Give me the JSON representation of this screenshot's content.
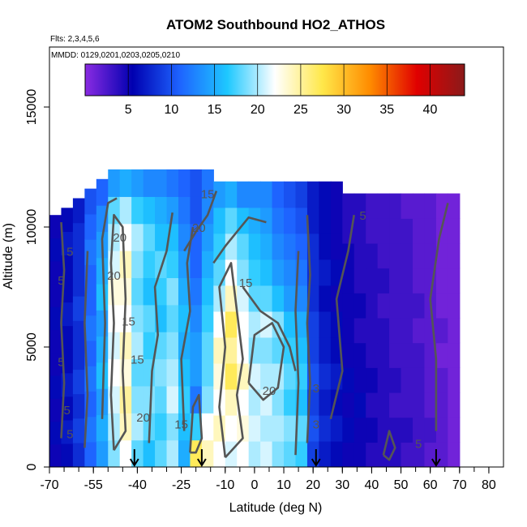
{
  "chart_data": {
    "type": "heatmap",
    "title": "ATOM2 Southbound HO2_ATHOS",
    "flights_label": "Flts: 2,3,4,5,6",
    "dates_label": "MMDD: 0129,0201,0203,0205,0210",
    "xlabel": "Latitude (deg N)",
    "ylabel": "Altitude (m)",
    "xlim": [
      -70,
      85
    ],
    "ylim": [
      0,
      17500
    ],
    "x_tick_values": [
      -70,
      -55,
      -40,
      -25,
      -10,
      0,
      10,
      20,
      30,
      40,
      50,
      60,
      70,
      80
    ],
    "x_tick_labels": [
      "-70",
      "-55",
      "-40",
      "-25",
      "-10",
      "0",
      "10",
      "20",
      "30",
      "40",
      "50",
      "60",
      "70",
      "80"
    ],
    "y_tick_values": [
      0,
      5000,
      10000,
      15000
    ],
    "y_tick_labels": [
      "0",
      "5000",
      "10000",
      "15000"
    ],
    "colorbar": {
      "range": [
        0,
        44
      ],
      "tick_values": [
        5,
        10,
        15,
        20,
        25,
        30,
        35,
        40
      ],
      "tick_labels": [
        "5",
        "10",
        "15",
        "20",
        "25",
        "30",
        "35",
        "40"
      ],
      "colors": [
        "#8a2be2",
        "#0000b0",
        "#1e64ff",
        "#1ec8ff",
        "#ffffff",
        "#ffe84a",
        "#ff8c00",
        "#e00000",
        "#8b1a1a"
      ]
    },
    "profiles": [
      {
        "lat": -68,
        "top": 10500,
        "values": [
          5,
          6,
          5,
          6,
          5,
          5,
          6,
          5,
          5,
          6,
          5
        ]
      },
      {
        "lat": -64,
        "top": 10800,
        "values": [
          6,
          7,
          6,
          7,
          6,
          6,
          7,
          6,
          6,
          7,
          6
        ]
      },
      {
        "lat": -60,
        "top": 11200,
        "values": [
          8,
          9,
          8,
          9,
          8,
          8,
          9,
          8,
          8,
          8,
          7
        ]
      },
      {
        "lat": -56,
        "top": 11600,
        "values": [
          11,
          12,
          11,
          12,
          11,
          12,
          11,
          11,
          12,
          11,
          10
        ]
      },
      {
        "lat": -52,
        "top": 12000,
        "values": [
          14,
          15,
          14,
          16,
          15,
          14,
          16,
          15,
          14,
          13,
          11
        ]
      },
      {
        "lat": -48,
        "top": 12400,
        "values": [
          19,
          20,
          21,
          22,
          21,
          22,
          23,
          21,
          20,
          18,
          14
        ]
      },
      {
        "lat": -44,
        "top": 12400,
        "values": [
          22,
          24,
          25,
          23,
          24,
          22,
          23,
          24,
          22,
          20,
          15
        ]
      },
      {
        "lat": -40,
        "top": 12400,
        "values": [
          18,
          20,
          19,
          18,
          20,
          19,
          18,
          19,
          20,
          17,
          14
        ]
      },
      {
        "lat": -36,
        "top": 12400,
        "values": [
          16,
          18,
          19,
          18,
          17,
          18,
          16,
          17,
          18,
          16,
          13
        ]
      },
      {
        "lat": -32,
        "top": 12400,
        "values": [
          18,
          17,
          18,
          19,
          18,
          16,
          17,
          18,
          16,
          15,
          13
        ]
      },
      {
        "lat": -28,
        "top": 12400,
        "values": [
          20,
          19,
          21,
          20,
          19,
          18,
          19,
          17,
          16,
          14,
          12
        ]
      },
      {
        "lat": -24,
        "top": 12400,
        "values": [
          15,
          16,
          17,
          16,
          15,
          16,
          15,
          14,
          13,
          12,
          11
        ]
      },
      {
        "lat": -20,
        "top": 12400,
        "values": [
          27,
          17,
          12,
          14,
          14,
          13,
          12,
          11,
          11,
          10,
          10
        ]
      },
      {
        "lat": -16,
        "top": 12400,
        "values": [
          24,
          22,
          19,
          18,
          18,
          17,
          16,
          15,
          14,
          13,
          12
        ]
      },
      {
        "lat": -12,
        "top": 11900,
        "values": [
          22,
          24,
          22,
          23,
          24,
          22,
          20,
          18,
          17,
          16,
          14
        ]
      },
      {
        "lat": -8,
        "top": 11900,
        "values": [
          21,
          22,
          24,
          27,
          25,
          27,
          24,
          22,
          20,
          18,
          15
        ]
      },
      {
        "lat": -4,
        "top": 11900,
        "values": [
          22,
          23,
          22,
          24,
          22,
          22,
          21,
          19,
          18,
          16,
          13
        ]
      },
      {
        "lat": 0,
        "top": 11900,
        "values": [
          20,
          21,
          20,
          21,
          19,
          20,
          18,
          17,
          16,
          15,
          13
        ]
      },
      {
        "lat": 4,
        "top": 11900,
        "values": [
          21,
          20,
          21,
          20,
          19,
          21,
          18,
          16,
          15,
          14,
          13
        ]
      },
      {
        "lat": 8,
        "top": 11900,
        "values": [
          19,
          20,
          19,
          20,
          18,
          19,
          16,
          14,
          13,
          12,
          11
        ]
      },
      {
        "lat": 12,
        "top": 11900,
        "values": [
          18,
          19,
          17,
          18,
          17,
          16,
          14,
          13,
          12,
          11,
          10
        ]
      },
      {
        "lat": 16,
        "top": 11900,
        "values": [
          17,
          18,
          16,
          17,
          16,
          15,
          13,
          12,
          11,
          10,
          9
        ]
      },
      {
        "lat": 20,
        "top": 11900,
        "values": [
          9,
          10,
          9,
          10,
          9,
          9,
          8,
          8,
          8,
          7,
          7
        ]
      },
      {
        "lat": 24,
        "top": 11900,
        "values": [
          7,
          8,
          7,
          8,
          7,
          7,
          6,
          7,
          6,
          6,
          6
        ]
      },
      {
        "lat": 28,
        "top": 11900,
        "values": [
          6,
          7,
          6,
          7,
          6,
          6,
          5,
          6,
          5,
          5,
          5
        ]
      },
      {
        "lat": 32,
        "top": 11400,
        "values": [
          5,
          6,
          5,
          6,
          5,
          5,
          5,
          5,
          5,
          4,
          4
        ]
      },
      {
        "lat": 36,
        "top": 11400,
        "values": [
          5,
          5,
          6,
          5,
          5,
          4,
          5,
          4,
          4,
          4,
          4
        ]
      },
      {
        "lat": 40,
        "top": 11400,
        "values": [
          4,
          5,
          4,
          5,
          4,
          4,
          4,
          4,
          4,
          3,
          3
        ]
      },
      {
        "lat": 44,
        "top": 11400,
        "values": [
          4,
          4,
          4,
          4,
          4,
          4,
          3,
          4,
          3,
          3,
          3
        ]
      },
      {
        "lat": 48,
        "top": 11400,
        "values": [
          4,
          4,
          3,
          4,
          3,
          3,
          3,
          3,
          3,
          3,
          3
        ]
      },
      {
        "lat": 52,
        "top": 11400,
        "values": [
          3,
          4,
          3,
          3,
          3,
          3,
          3,
          3,
          3,
          3,
          2
        ]
      },
      {
        "lat": 56,
        "top": 11400,
        "values": [
          3,
          3,
          3,
          3,
          3,
          2,
          3,
          2,
          2,
          2,
          2
        ]
      },
      {
        "lat": 60,
        "top": 11400,
        "values": [
          2,
          3,
          2,
          2,
          2,
          2,
          2,
          2,
          2,
          2,
          2
        ]
      },
      {
        "lat": 64,
        "top": 11400,
        "values": [
          2,
          2,
          2,
          2,
          1,
          2,
          1,
          1,
          1,
          1,
          1
        ]
      },
      {
        "lat": 68,
        "top": 11400,
        "values": [
          1,
          1,
          1,
          1,
          1,
          1,
          1,
          1,
          1,
          1,
          1
        ]
      }
    ],
    "contours": [
      {
        "level": "5",
        "points": [
          [
            -66,
            1200
          ],
          [
            -65,
            3500
          ],
          [
            -66,
            6000
          ],
          [
            -65,
            8200
          ],
          [
            -66,
            10200
          ]
        ]
      },
      {
        "level": "5",
        "points": [
          [
            -58,
            800
          ],
          [
            -57,
            3000
          ],
          [
            -58,
            6000
          ],
          [
            -57,
            9000
          ]
        ]
      },
      {
        "level": "20",
        "points": [
          [
            -48,
            700
          ],
          [
            -49,
            3000
          ],
          [
            -48,
            6000
          ],
          [
            -49,
            8500
          ],
          [
            -48,
            10500
          ],
          [
            -45,
            10000
          ],
          [
            -44,
            7000
          ],
          [
            -45,
            4000
          ],
          [
            -44,
            1500
          ],
          [
            -48,
            700
          ]
        ]
      },
      {
        "level": "15",
        "points": [
          [
            -52,
            2000
          ],
          [
            -51,
            6000
          ],
          [
            -52,
            9500
          ],
          [
            -50,
            11000
          ],
          [
            -47,
            11200
          ]
        ]
      },
      {
        "level": "15",
        "points": [
          [
            -36,
            1000
          ],
          [
            -35,
            4000
          ],
          [
            -33,
            5500
          ],
          [
            -34,
            7500
          ],
          [
            -30,
            9000
          ],
          [
            -28,
            10600
          ]
        ]
      },
      {
        "level": "20",
        "points": [
          [
            -22,
            600
          ],
          [
            -21,
            2500
          ],
          [
            -19,
            3000
          ],
          [
            -18,
            1200
          ],
          [
            -20,
            600
          ],
          [
            -22,
            600
          ]
        ]
      },
      {
        "level": "15",
        "points": [
          [
            -24,
            1500
          ],
          [
            -25,
            4500
          ],
          [
            -22,
            6500
          ],
          [
            -23,
            8500
          ],
          [
            -21,
            10000
          ]
        ]
      },
      {
        "level": "20",
        "points": [
          [
            -24,
            9000
          ],
          [
            -20,
            9800
          ],
          [
            -16,
            10500
          ],
          [
            -13,
            11500
          ]
        ]
      },
      {
        "level": "15",
        "points": [
          [
            -14,
            8500
          ],
          [
            -10,
            9200
          ],
          [
            -6,
            9800
          ],
          [
            -2,
            10400
          ],
          [
            4,
            10200
          ]
        ]
      },
      {
        "level": "20",
        "points": [
          [
            -10,
            400
          ],
          [
            -12,
            2500
          ],
          [
            -10,
            5000
          ],
          [
            -12,
            7500
          ],
          [
            -8,
            8500
          ],
          [
            -6,
            6500
          ],
          [
            -4,
            4500
          ],
          [
            -6,
            3000
          ],
          [
            -4,
            1200
          ],
          [
            -10,
            400
          ]
        ]
      },
      {
        "level": "20",
        "points": [
          [
            -2,
            3500
          ],
          [
            3,
            2800
          ],
          [
            8,
            3300
          ],
          [
            10,
            5000
          ],
          [
            6,
            6000
          ],
          [
            0,
            5500
          ],
          [
            -2,
            3500
          ]
        ]
      },
      {
        "level": "15",
        "points": [
          [
            -4,
            7500
          ],
          [
            2,
            6500
          ],
          [
            8,
            6000
          ],
          [
            12,
            5000
          ],
          [
            14,
            4000
          ]
        ]
      },
      {
        "level": "5",
        "points": [
          [
            18,
            1000
          ],
          [
            19,
            3500
          ],
          [
            18,
            6000
          ],
          [
            19,
            8000
          ],
          [
            18,
            10500
          ]
        ]
      },
      {
        "level": "5",
        "points": [
          [
            14,
            500
          ],
          [
            15,
            3500
          ],
          [
            14,
            6500
          ],
          [
            15,
            9000
          ]
        ]
      },
      {
        "level": "5",
        "points": [
          [
            26,
            2000
          ],
          [
            30,
            4000
          ],
          [
            28,
            7000
          ],
          [
            32,
            9000
          ],
          [
            34,
            10500
          ]
        ]
      },
      {
        "level": "5",
        "points": [
          [
            44,
            500
          ],
          [
            46,
            1500
          ],
          [
            48,
            800
          ],
          [
            46,
            300
          ],
          [
            44,
            500
          ]
        ]
      },
      {
        "level": "5",
        "points": [
          [
            62,
            1500
          ],
          [
            62,
            4500
          ],
          [
            60,
            7000
          ],
          [
            63,
            9500
          ],
          [
            66,
            11000
          ]
        ]
      }
    ],
    "contour_labels": [
      {
        "text": "20",
        "lat": -46,
        "alt": 9400
      },
      {
        "text": "20",
        "lat": -48,
        "alt": 7800
      },
      {
        "text": "15",
        "lat": -43,
        "alt": 5900
      },
      {
        "text": "15",
        "lat": -40,
        "alt": 4300
      },
      {
        "text": "20",
        "lat": -38,
        "alt": 1900
      },
      {
        "text": "15",
        "lat": -25,
        "alt": 1600
      },
      {
        "text": "20",
        "lat": -19,
        "alt": 9800
      },
      {
        "text": "15",
        "lat": -16,
        "alt": 11200
      },
      {
        "text": "15",
        "lat": -3,
        "alt": 7500
      },
      {
        "text": "20",
        "lat": 5,
        "alt": 3000
      },
      {
        "text": "5",
        "lat": 37,
        "alt": 10300
      },
      {
        "text": "5",
        "lat": 56,
        "alt": 800
      },
      {
        "text": "5",
        "lat": -66,
        "alt": 7600
      },
      {
        "text": "5",
        "lat": -66,
        "alt": 4200
      },
      {
        "text": "5",
        "lat": -64,
        "alt": 2200
      },
      {
        "text": "5",
        "lat": -63,
        "alt": 1200
      },
      {
        "text": "5",
        "lat": -63,
        "alt": 8800
      },
      {
        "text": "3",
        "lat": 21,
        "alt": 3100
      },
      {
        "text": "3",
        "lat": 21,
        "alt": 1600
      }
    ],
    "markers": [
      {
        "lat": -41,
        "label": "arrow"
      },
      {
        "lat": -18,
        "label": "arrow"
      },
      {
        "lat": 21,
        "label": "arrow"
      },
      {
        "lat": 62,
        "label": "arrow"
      }
    ]
  }
}
